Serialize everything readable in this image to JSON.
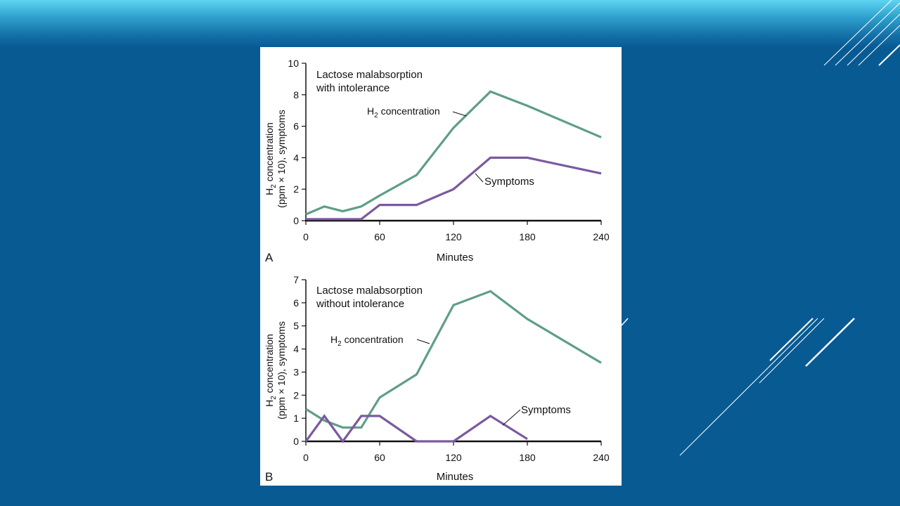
{
  "slide": {
    "colors": {
      "background": "#085a93",
      "band_light": "#5fd3f1",
      "deco_line": "#ffffff"
    }
  },
  "chart_data": [
    {
      "type": "line",
      "panel_letter": "A",
      "title": "Lactose malabsorption with intolerance",
      "title_lines": [
        "Lactose malabsorption",
        "with intolerance"
      ],
      "xlabel": "Minutes",
      "ylabel_lines": [
        "H2 concentration",
        "(ppm × 10), symptoms"
      ],
      "xlim": [
        0,
        240
      ],
      "ylim": [
        0,
        10
      ],
      "x_ticks": [
        0,
        60,
        120,
        180,
        240
      ],
      "y_ticks": [
        0,
        2,
        4,
        6,
        8,
        10
      ],
      "series": [
        {
          "name": "H2 concentration",
          "annotation": "H₂ concentration",
          "color": "#5f9e88",
          "x": [
            0,
            15,
            30,
            45,
            60,
            90,
            120,
            150,
            180,
            240
          ],
          "values": [
            0.4,
            0.9,
            0.6,
            0.9,
            1.6,
            2.9,
            5.9,
            8.2,
            7.3,
            5.3
          ]
        },
        {
          "name": "Symptoms",
          "annotation": "Symptoms",
          "color": "#7b5aa0",
          "x": [
            0,
            15,
            30,
            45,
            60,
            90,
            120,
            150,
            180,
            240
          ],
          "values": [
            0.1,
            0.1,
            0.1,
            0.1,
            1.0,
            1.0,
            2.0,
            4.0,
            4.0,
            3.0
          ]
        }
      ]
    },
    {
      "type": "line",
      "panel_letter": "B",
      "title": "Lactose malabsorption without intolerance",
      "title_lines": [
        "Lactose malabsorption",
        "without intolerance"
      ],
      "xlabel": "Minutes",
      "ylabel_lines": [
        "H2 concentration",
        "(ppm × 10), symptoms"
      ],
      "xlim": [
        0,
        240
      ],
      "ylim": [
        0,
        7
      ],
      "x_ticks": [
        0,
        60,
        120,
        180,
        240
      ],
      "y_ticks": [
        0,
        1,
        2,
        3,
        4,
        5,
        6,
        7
      ],
      "series": [
        {
          "name": "H2 concentration",
          "annotation": "H₂ concentration",
          "color": "#5f9e88",
          "x": [
            0,
            15,
            30,
            45,
            60,
            90,
            120,
            150,
            180,
            240
          ],
          "values": [
            1.4,
            0.9,
            0.6,
            0.6,
            1.9,
            2.9,
            5.9,
            6.5,
            5.3,
            3.4
          ]
        },
        {
          "name": "Symptoms",
          "annotation": "Symptoms",
          "color": "#7b5aa0",
          "x": [
            0,
            15,
            30,
            45,
            60,
            90,
            120,
            150,
            180
          ],
          "values": [
            0,
            1.1,
            0,
            1.1,
            1.1,
            0,
            0,
            1.1,
            0.1
          ]
        }
      ]
    }
  ]
}
